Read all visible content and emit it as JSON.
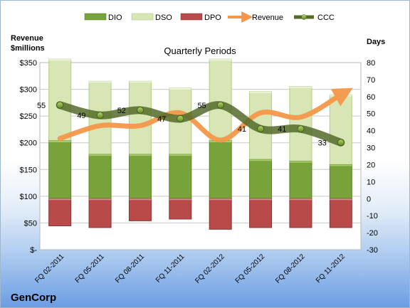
{
  "company": "GenCorp",
  "chart_data": {
    "type": "bar",
    "title": "Quarterly Periods",
    "left_axis_title": [
      "Revenue",
      "$millions"
    ],
    "right_axis_title": "Days",
    "categories": [
      "FQ 02-2011",
      "FQ 05-2011",
      "FQ 08-2011",
      "FQ 11-2011",
      "FQ 02-2012",
      "FQ 05-2012",
      "FQ 08-2012",
      "FQ 11-2012"
    ],
    "left_axis": {
      "min": 0,
      "max": 350,
      "step": 50,
      "tick_labels": [
        "$-",
        "$50",
        "$100",
        "$150",
        "$200",
        "$250",
        "$300",
        "$350"
      ]
    },
    "right_axis": {
      "min": -30,
      "max": 80,
      "step": 10,
      "tick_labels": [
        "-30",
        "-20",
        "-10",
        "0",
        "10",
        "20",
        "30",
        "40",
        "50",
        "60",
        "70",
        "80"
      ]
    },
    "legend": [
      "DIO",
      "DSO",
      "DPO",
      "Revenue",
      "CCC"
    ],
    "legend_position": "top",
    "grid": true,
    "colors": {
      "DIO": "#77a33a",
      "DSO": "#d7e6b4",
      "DPO": "#b94a4a",
      "Revenue": "#f5974a",
      "CCC": "#556b2a"
    },
    "series": [
      {
        "name": "DIO",
        "axis": "right",
        "values": [
          34,
          26,
          26,
          26,
          34,
          23,
          22,
          20
        ]
      },
      {
        "name": "DSO",
        "axis": "right",
        "values": [
          48,
          43,
          43,
          39,
          48,
          40,
          44,
          41
        ]
      },
      {
        "name": "DPO",
        "axis": "right",
        "values": [
          -16,
          -17,
          -13,
          -12,
          -18,
          -17,
          -17,
          -17
        ]
      },
      {
        "name": "Revenue",
        "axis": "left",
        "values": [
          208,
          232,
          232,
          256,
          205,
          256,
          248,
          290
        ]
      },
      {
        "name": "CCC",
        "axis": "right",
        "values": [
          55,
          49,
          52,
          47,
          55,
          41,
          41,
          33
        ]
      }
    ],
    "ccc_labels": [
      "55",
      "49",
      "52",
      "47",
      "55",
      "41",
      "41",
      "33"
    ]
  }
}
